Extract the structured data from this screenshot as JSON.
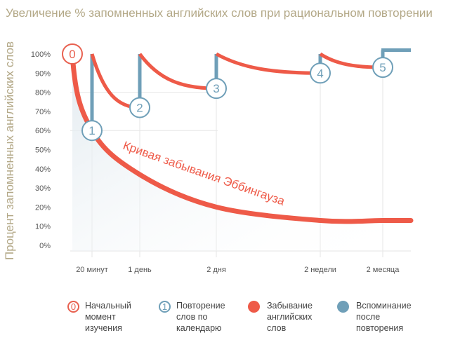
{
  "chart_data": {
    "type": "line",
    "title": "Увеличение % запомненных английских слов при рациональном повторении",
    "ylabel": "Процент запомненных английских слов",
    "xlabel": "",
    "ylim": [
      0,
      100
    ],
    "yticks": [
      "100%",
      "90%",
      "80%",
      "70%",
      "60%",
      "50%",
      "40%",
      "30%",
      "20%",
      "10%",
      "0%"
    ],
    "categories": [
      "20 минут",
      "1 день",
      "2 дня",
      "2 недели",
      "2 месяца"
    ],
    "forgetting_curve": {
      "name": "Кривая забывания Эббингауза",
      "points": [
        [
          0,
          100
        ],
        [
          1,
          60
        ],
        [
          2,
          37
        ],
        [
          3,
          20
        ],
        [
          4,
          13
        ],
        [
          5,
          13
        ],
        [
          6,
          13
        ]
      ]
    },
    "repetitions": [
      {
        "label": "1",
        "at": 1,
        "value": 60,
        "recall_to": 100
      },
      {
        "label": "2",
        "at": 2,
        "value": 72,
        "recall_to": 100
      },
      {
        "label": "3",
        "at": 3,
        "value": 82,
        "recall_to": 100
      },
      {
        "label": "4",
        "at": 4,
        "value": 90,
        "recall_to": 100
      },
      {
        "label": "5",
        "at": 5,
        "value": 93,
        "recall_to": 102
      }
    ],
    "start": {
      "label": "0",
      "value": 100
    },
    "colors": {
      "forget": "#ee5a48",
      "recall": "#6f9fb8",
      "start": "#e8604f",
      "grid": "#e6e6e6"
    }
  },
  "legend": [
    {
      "icon": "0",
      "text": "Начальный момент изучения"
    },
    {
      "icon": "1",
      "text": "Повторение слов по календарю"
    },
    {
      "icon": "",
      "text": "Забывание английских слов"
    },
    {
      "icon": "",
      "text": "Вспоминание после повторения"
    }
  ]
}
